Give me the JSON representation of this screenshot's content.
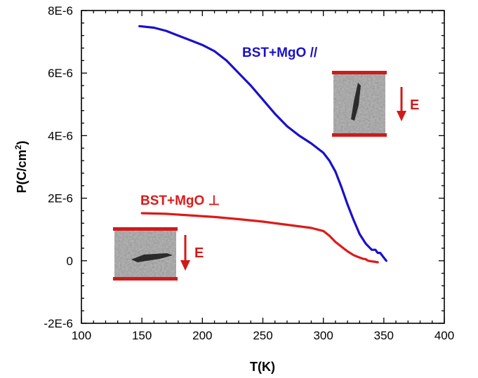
{
  "chart_data": {
    "type": "line",
    "xlabel": "T(K)",
    "ylabel_base": "P(C/cm",
    "ylabel_sup": "2",
    "ylabel_close": ")",
    "xlim": [
      100,
      400
    ],
    "ylim": [
      -2e-06,
      8e-06
    ],
    "x_ticks": [
      100,
      150,
      200,
      250,
      300,
      350,
      400
    ],
    "x_tick_labels": [
      "100",
      "150",
      "200",
      "250",
      "300",
      "350",
      "400"
    ],
    "y_ticks": [
      -2e-06,
      0,
      2e-06,
      4e-06,
      6e-06,
      8e-06
    ],
    "y_tick_labels": [
      "-2E-6",
      "0",
      "2E-6",
      "4E-6",
      "6E-6",
      "8E-6"
    ],
    "grid": false,
    "series": [
      {
        "name": "BST+MgO //",
        "color": "#1a10c8",
        "x": [
          148,
          160,
          170,
          180,
          190,
          200,
          210,
          220,
          230,
          240,
          250,
          260,
          270,
          280,
          290,
          300,
          305,
          310,
          315,
          320,
          325,
          330,
          335,
          340,
          343,
          345,
          347,
          350,
          352
        ],
        "y": [
          7.5e-06,
          7.45e-06,
          7.35e-06,
          7.2e-06,
          7.05e-06,
          6.9e-06,
          6.7e-06,
          6.4e-06,
          6e-06,
          5.6e-06,
          5.15e-06,
          4.7e-06,
          4.3e-06,
          4e-06,
          3.75e-06,
          3.45e-06,
          3.2e-06,
          2.85e-06,
          2.35e-06,
          1.8e-06,
          1.3e-06,
          8.5e-07,
          5.5e-07,
          3.5e-07,
          3.5e-07,
          2.5e-07,
          2.5e-07,
          1e-07,
          0.0
        ]
      },
      {
        "name": "BST+MgO ⊥",
        "color": "#dd1a1a",
        "x": [
          150,
          170,
          190,
          210,
          230,
          250,
          270,
          290,
          300,
          305,
          310,
          315,
          320,
          325,
          330,
          333,
          335,
          337,
          340,
          342,
          345
        ],
        "y": [
          1.52e-06,
          1.5e-06,
          1.45e-06,
          1.4e-06,
          1.33e-06,
          1.25e-06,
          1.15e-06,
          1.05e-06,
          9.5e-07,
          8e-07,
          6e-07,
          4.5e-07,
          3e-07,
          1.8e-07,
          1e-07,
          6e-08,
          5e-08,
          0.0,
          -2e-08,
          -3e-08,
          -5e-08
        ]
      }
    ]
  },
  "annotations": {
    "parallel_label": "BST+MgO //",
    "perp_label": "BST+MgO ⊥",
    "field_label": "E",
    "field_label_2": "E",
    "accent_blue": "#1a10c8",
    "accent_red": "#dd1a1a"
  }
}
